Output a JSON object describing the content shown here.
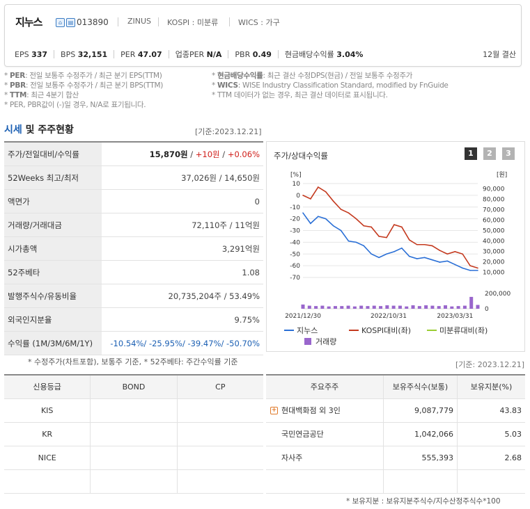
{
  "header": {
    "company_name": "지누스",
    "code": "013890",
    "meta": [
      "ZINUS",
      "KOSPI : 미분류",
      "WICS : 가구"
    ],
    "stats": [
      {
        "label": "EPS",
        "value": "337"
      },
      {
        "label": "BPS",
        "value": "32,151"
      },
      {
        "label": "PER",
        "value": "47.07"
      },
      {
        "label": "업종PER",
        "value": "N/A"
      },
      {
        "label": "PBR",
        "value": "0.49"
      },
      {
        "label": "현금배당수익률",
        "value": "3.04%"
      }
    ],
    "settlement": "12월 결산"
  },
  "notes": {
    "left": [
      {
        "term": "PER",
        "text": ": 전일 보통주 수정주가 / 최근 분기 EPS(TTM)"
      },
      {
        "term": "PBR",
        "text": ": 전일 보통주 수정주가 / 최근 분기 BPS(TTM)"
      },
      {
        "term": "TTM",
        "text": ": 최근 4분기 합산"
      },
      {
        "term": "",
        "text": "PER, PBR값이 (-)일 경우, N/A로 표기됩니다."
      }
    ],
    "right": [
      {
        "term": "현금배당수익률",
        "text": ": 최근 결산 수정DPS(현금) / 전일 보통주 수정주가"
      },
      {
        "term": "WICS",
        "text": ": WISE Industry Classification Standard, modified by FnGuide"
      },
      {
        "term": "",
        "text": "TTM 데이터가 없는 경우, 최근 결산 데이터로 표시됩니다."
      }
    ]
  },
  "section": {
    "title_a": "시세",
    "title_b": " 및 주주현황",
    "base_date": "[기준:2023.12.21]"
  },
  "price_table": [
    {
      "key": "주가/전일대비/수익률",
      "parts": [
        {
          "t": "15,870원",
          "c": "bold"
        },
        {
          "t": " / ",
          "c": ""
        },
        {
          "t": "+10원",
          "c": "red"
        },
        {
          "t": " / ",
          "c": ""
        },
        {
          "t": "+0.06%",
          "c": "red"
        }
      ]
    },
    {
      "key": "52Weeks 최고/최저",
      "parts": [
        {
          "t": "37,026원 / 14,650원",
          "c": ""
        }
      ]
    },
    {
      "key": "액면가",
      "parts": [
        {
          "t": "0",
          "c": ""
        }
      ]
    },
    {
      "key": "거래량/거래대금",
      "parts": [
        {
          "t": "72,110주 / 11억원",
          "c": ""
        }
      ]
    },
    {
      "key": "시가총액",
      "parts": [
        {
          "t": "3,291억원",
          "c": ""
        }
      ]
    },
    {
      "key": "52주베타",
      "parts": [
        {
          "t": "1.08",
          "c": ""
        }
      ]
    },
    {
      "key": "발행주식수/유동비율",
      "parts": [
        {
          "t": "20,735,204주 / 53.49%",
          "c": ""
        }
      ]
    },
    {
      "key": "외국인지분율",
      "parts": [
        {
          "t": "9.75%",
          "c": ""
        }
      ]
    },
    {
      "key": "수익률 (1M/3M/6M/1Y)",
      "parts": [
        {
          "t": "-10.54%",
          "c": "blu"
        },
        {
          "t": "/ ",
          "c": "blu"
        },
        {
          "t": "-25.95%",
          "c": "blu"
        },
        {
          "t": "/ ",
          "c": "blu"
        },
        {
          "t": "-39.47%",
          "c": "blu"
        },
        {
          "t": "/ ",
          "c": "blu"
        },
        {
          "t": "-50.70%",
          "c": "blu"
        }
      ]
    }
  ],
  "price_table_foot": "* 수정주가(차트포함), 보통주 기준, * 52주베타: 주간수익률 기준",
  "chart_panel": {
    "title": "주가/상대수익률",
    "buttons": [
      "1",
      "2",
      "3"
    ],
    "colors": {
      "zinus": "#2a6fd6",
      "kospi": "#c4391e",
      "sector": "#9acd32",
      "volume": "#9966cc",
      "btn_active": "#333333",
      "btn_inactive": "#b3b3b3"
    }
  },
  "chart_data": {
    "type": "line",
    "left_axis": {
      "label": "[%]",
      "ticks": [
        "10",
        "0",
        "-10",
        "-20",
        "-30",
        "-40",
        "-50",
        "-60",
        "-70"
      ],
      "range": [
        -70,
        10
      ]
    },
    "right_axis": {
      "label": "[원]",
      "ticks": [
        "90,000",
        "80,000",
        "70,000",
        "60,000",
        "50,000",
        "40,000",
        "30,000",
        "20,000",
        "10,000"
      ],
      "range": [
        5000,
        95000
      ]
    },
    "volume_axis": {
      "ticks": [
        "200,000",
        "0"
      ],
      "range": [
        0,
        200000
      ]
    },
    "x_ticks": [
      "2021/12/30",
      "2022/10/31",
      "2023/03/31"
    ],
    "legend": [
      "지누스",
      "KOSPI대비(좌)",
      "미분류대비(좌)",
      "거래량"
    ],
    "series": [
      {
        "name": "지누스",
        "values": [
          -15,
          -24,
          -18,
          -20,
          -26,
          -30,
          -39,
          -40,
          -43,
          -50,
          -53,
          -50,
          -48,
          -45,
          -52,
          -54,
          -53,
          -55,
          -57,
          -56,
          -59,
          -62,
          -64,
          -64
        ]
      },
      {
        "name": "KOSPI대비(좌)",
        "values": [
          0,
          -3,
          7,
          3,
          -5,
          -12,
          -15,
          -20,
          -26,
          -27,
          -35,
          -36,
          -25,
          -27,
          -38,
          -42,
          -42,
          -43,
          -47,
          -50,
          -48,
          -50,
          -60,
          -62
        ]
      }
    ],
    "volume": [
      55000,
      40000,
      35000,
      40000,
      30000,
      35000,
      35000,
      40000,
      30000,
      40000,
      35000,
      40000,
      35000,
      45000,
      40000,
      40000,
      30000,
      45000,
      35000,
      45000,
      40000,
      35000,
      45000,
      30000,
      35000,
      40000,
      155000,
      50000
    ]
  },
  "base_date_2": "[기준: 2023.12.21]",
  "credit": {
    "headers": [
      "신용등급",
      "BOND",
      "CP"
    ],
    "rows": [
      [
        "KIS",
        "",
        ""
      ],
      [
        "KR",
        "",
        ""
      ],
      [
        "NICE",
        "",
        ""
      ],
      [
        "",
        "",
        ""
      ]
    ]
  },
  "holders": {
    "headers": [
      "주요주주",
      "보유주식수(보통)",
      "보유지분(%)"
    ],
    "rows": [
      {
        "name": "현대백화점 외 3인",
        "shares": "9,087,779",
        "pct": "43.83",
        "expandable": true
      },
      {
        "name": "국민연금공단",
        "shares": "1,042,066",
        "pct": "5.03",
        "expandable": false
      },
      {
        "name": "자사주",
        "shares": "555,393",
        "pct": "2.68",
        "expandable": false
      },
      {
        "name": "",
        "shares": "",
        "pct": "",
        "expandable": false
      }
    ],
    "foot": "* 보유지분 : 보유지분주식수/지수산정주식수*100"
  }
}
